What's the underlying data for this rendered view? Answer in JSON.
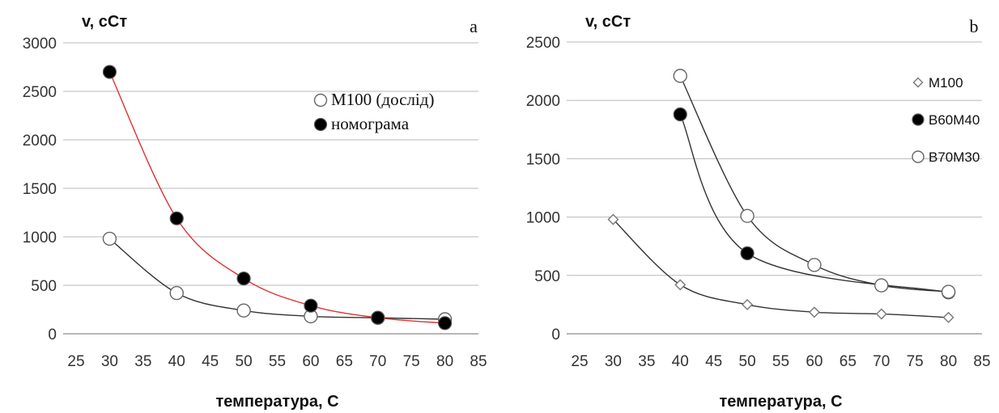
{
  "chart_data": [
    {
      "type": "scatter",
      "panel_label": "a",
      "ylabel": "v, сСт",
      "xlabel": "температура, С",
      "xlim": [
        25,
        85
      ],
      "ylim": [
        0,
        3000
      ],
      "xticks": [
        25,
        30,
        35,
        40,
        45,
        50,
        55,
        60,
        65,
        70,
        75,
        80,
        85
      ],
      "yticks": [
        0,
        500,
        1000,
        1500,
        2000,
        2500,
        3000
      ],
      "grid": "horizontal",
      "legend_position": "right",
      "series": [
        {
          "name": "M100 (дослід)",
          "marker": "circle-open",
          "trend_color": "#333333",
          "x": [
            30,
            40,
            50,
            60,
            70,
            80
          ],
          "y": [
            980,
            420,
            240,
            180,
            165,
            150
          ]
        },
        {
          "name": "номограма",
          "marker": "circle-filled",
          "trend_color": "#e03030",
          "x": [
            30,
            40,
            50,
            60,
            70,
            80
          ],
          "y": [
            2700,
            1190,
            570,
            290,
            165,
            110
          ]
        }
      ]
    },
    {
      "type": "scatter",
      "panel_label": "b",
      "ylabel": "v, сСт",
      "xlabel": "температура, С",
      "xlim": [
        25,
        85
      ],
      "ylim": [
        0,
        2500
      ],
      "xticks": [
        25,
        30,
        35,
        40,
        45,
        50,
        55,
        60,
        65,
        70,
        75,
        80,
        85
      ],
      "yticks": [
        0,
        500,
        1000,
        1500,
        2000,
        2500
      ],
      "grid": "horizontal",
      "legend_position": "right",
      "series": [
        {
          "name": "M100",
          "marker": "diamond-open",
          "trend_color": "#333333",
          "x": [
            30,
            40,
            50,
            60,
            70,
            80
          ],
          "y": [
            980,
            420,
            250,
            185,
            170,
            140
          ]
        },
        {
          "name": "B60M40",
          "marker": "circle-filled",
          "trend_color": "#333333",
          "x": [
            40,
            50,
            80
          ],
          "y": [
            1880,
            690,
            355
          ]
        },
        {
          "name": "B70M30",
          "marker": "circle-open",
          "trend_color": "#333333",
          "x": [
            40,
            50,
            60,
            70,
            80
          ],
          "y": [
            2210,
            1010,
            590,
            415,
            360
          ]
        }
      ]
    }
  ]
}
